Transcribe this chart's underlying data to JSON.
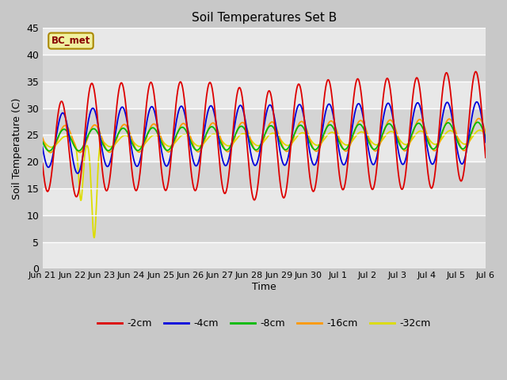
{
  "title": "Soil Temperatures Set B",
  "xlabel": "Time",
  "ylabel": "Soil Temperature (C)",
  "ylim": [
    0,
    45
  ],
  "yticks": [
    0,
    5,
    10,
    15,
    20,
    25,
    30,
    35,
    40,
    45
  ],
  "annotation": "BC_met",
  "fig_bg": "#d0d0d0",
  "plot_bg_light": "#e8e8e8",
  "plot_bg_dark": "#d0d0d0",
  "series_colors": {
    "-2cm": "#dd0000",
    "-4cm": "#0000dd",
    "-8cm": "#00bb00",
    "-16cm": "#ff9900",
    "-32cm": "#dddd00"
  },
  "x_labels": [
    "Jun 21",
    "Jun 22",
    "Jun 23",
    "Jun 24",
    "Jun 25",
    "Jun 26",
    "Jun 27",
    "Jun 28",
    "Jun 29",
    "Jun 30",
    "Jul 1",
    "Jul 2",
    "Jul 3",
    "Jul 4",
    "Jul 5",
    "Jul 6"
  ],
  "num_days": 15
}
